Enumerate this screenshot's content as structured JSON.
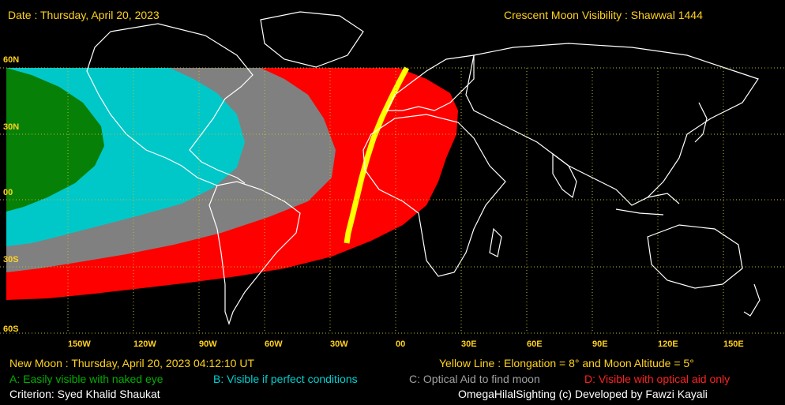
{
  "header": {
    "date": "Date : Thursday, April 20, 2023",
    "title": "Crescent Moon Visibility : Shawwal  1444"
  },
  "lat_labels": [
    "60N",
    "30N",
    "00",
    "30S",
    "60S"
  ],
  "lon_labels": [
    "150W",
    "120W",
    "90W",
    "60W",
    "30W",
    "00",
    "30E",
    "60E",
    "90E",
    "120E",
    "150E"
  ],
  "footer": {
    "new_moon": "New Moon : Thursday, April 20, 2023  04:12:10  UT",
    "yellow_line": "Yellow Line : Elongation = 8° and Moon Altitude = 5°",
    "legend": {
      "a": "A: Easily visible with naked eye",
      "b": "B: Visible if perfect conditions",
      "c": "C: Optical Aid to find moon",
      "d": "D: Visible with optical aid only"
    },
    "criterion": "Criterion: Syed Khalid Shaukat",
    "credit": "OmegaHilalSighting  (c)  Developed by Fawzi Kayali"
  },
  "colors": {
    "zone_a": "#078007",
    "zone_b": "#00c8c8",
    "zone_c": "#808080",
    "zone_d": "#ff0000",
    "yellow_line": "#ffff00",
    "label_yellow": "#ffd21e",
    "legend_a": "#00b000",
    "legend_b": "#00d0d0",
    "legend_c": "#a0a0a0",
    "legend_d": "#ff2020"
  }
}
